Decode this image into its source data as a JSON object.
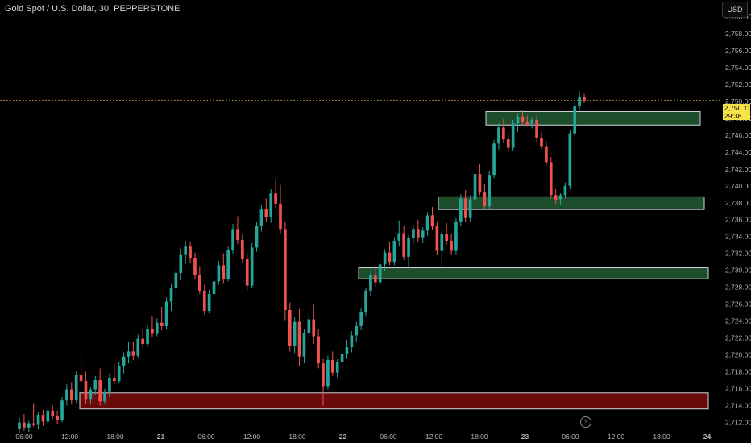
{
  "header": {
    "title": "Gold Spot / U.S. Dollar, 30, PEPPERSTONE",
    "currency_button": "USD"
  },
  "last_price": {
    "value": "2,750.11",
    "countdown": "29:38"
  },
  "colors": {
    "up": "#26a69a",
    "down": "#ef5350",
    "zone_green": "#1e4d2b",
    "zone_red": "#6b0a0a",
    "zone_border": "#d1d4dc",
    "price_line": "#c9a227",
    "tag": "#f5e34a"
  },
  "chart_data": {
    "type": "candlestick",
    "symbol": "XAUUSD",
    "interval": "30",
    "y_axis_ticks": [
      "2,760.00",
      "2,758.00",
      "2,756.00",
      "2,754.00",
      "2,752.00",
      "2,750.00",
      "2,748.00",
      "2,746.00",
      "2,744.00",
      "2,742.00",
      "2,740.00",
      "2,738.00",
      "2,736.00",
      "2,734.00",
      "2,732.00",
      "2,730.00",
      "2,728.00",
      "2,726.00",
      "2,724.00",
      "2,722.00",
      "2,720.00",
      "2,718.00",
      "2,716.00",
      "2,714.00",
      "2,712.00"
    ],
    "ylim": [
      2711.0,
      2762.0
    ],
    "x_axis_ticks": [
      "06:00",
      "12:00",
      "18:00",
      "21",
      "06:00",
      "12:00",
      "18:00",
      "22",
      "06:00",
      "12:00",
      "18:00",
      "23",
      "06:00",
      "12:00",
      "18:00",
      "24"
    ],
    "zones": [
      {
        "kind": "resistance",
        "low": 2747.2,
        "high": 2748.8
      },
      {
        "kind": "support",
        "low": 2737.2,
        "high": 2738.7
      },
      {
        "kind": "support",
        "low": 2729.0,
        "high": 2730.3
      },
      {
        "kind": "demand",
        "low": 2713.6,
        "high": 2715.5
      }
    ],
    "candles": [
      {
        "o": 2711.2,
        "h": 2712.6,
        "l": 2710.8,
        "c": 2712.0
      },
      {
        "o": 2712.0,
        "h": 2713.0,
        "l": 2711.0,
        "c": 2711.4
      },
      {
        "o": 2711.4,
        "h": 2712.2,
        "l": 2710.9,
        "c": 2711.9
      },
      {
        "o": 2711.9,
        "h": 2714.3,
        "l": 2711.5,
        "c": 2711.7
      },
      {
        "o": 2711.7,
        "h": 2713.2,
        "l": 2711.2,
        "c": 2712.9
      },
      {
        "o": 2712.9,
        "h": 2713.5,
        "l": 2711.6,
        "c": 2712.1
      },
      {
        "o": 2712.1,
        "h": 2713.8,
        "l": 2711.9,
        "c": 2713.4
      },
      {
        "o": 2713.4,
        "h": 2714.0,
        "l": 2712.4,
        "c": 2712.8
      },
      {
        "o": 2712.8,
        "h": 2713.4,
        "l": 2711.8,
        "c": 2712.3
      },
      {
        "o": 2712.3,
        "h": 2715.0,
        "l": 2712.0,
        "c": 2714.6
      },
      {
        "o": 2714.6,
        "h": 2716.5,
        "l": 2714.0,
        "c": 2715.9
      },
      {
        "o": 2715.9,
        "h": 2716.8,
        "l": 2714.2,
        "c": 2714.7
      },
      {
        "o": 2714.7,
        "h": 2718.1,
        "l": 2714.3,
        "c": 2717.6
      },
      {
        "o": 2717.6,
        "h": 2720.3,
        "l": 2716.4,
        "c": 2716.9
      },
      {
        "o": 2716.9,
        "h": 2718.0,
        "l": 2714.2,
        "c": 2714.8
      },
      {
        "o": 2714.8,
        "h": 2716.2,
        "l": 2714.1,
        "c": 2715.9
      },
      {
        "o": 2715.9,
        "h": 2717.5,
        "l": 2715.3,
        "c": 2717.0
      },
      {
        "o": 2717.0,
        "h": 2718.4,
        "l": 2714.0,
        "c": 2714.5
      },
      {
        "o": 2714.5,
        "h": 2716.0,
        "l": 2714.2,
        "c": 2715.6
      },
      {
        "o": 2715.6,
        "h": 2717.8,
        "l": 2715.0,
        "c": 2717.3
      },
      {
        "o": 2717.3,
        "h": 2718.9,
        "l": 2716.5,
        "c": 2716.9
      },
      {
        "o": 2716.9,
        "h": 2719.1,
        "l": 2716.6,
        "c": 2718.7
      },
      {
        "o": 2718.7,
        "h": 2720.3,
        "l": 2717.8,
        "c": 2719.8
      },
      {
        "o": 2719.8,
        "h": 2721.5,
        "l": 2719.0,
        "c": 2720.4
      },
      {
        "o": 2720.4,
        "h": 2721.6,
        "l": 2719.4,
        "c": 2719.9
      },
      {
        "o": 2719.9,
        "h": 2722.4,
        "l": 2719.6,
        "c": 2721.9
      },
      {
        "o": 2721.9,
        "h": 2723.0,
        "l": 2720.8,
        "c": 2721.3
      },
      {
        "o": 2721.3,
        "h": 2723.5,
        "l": 2721.0,
        "c": 2723.1
      },
      {
        "o": 2723.1,
        "h": 2724.6,
        "l": 2722.1,
        "c": 2722.5
      },
      {
        "o": 2722.5,
        "h": 2724.3,
        "l": 2722.2,
        "c": 2723.8
      },
      {
        "o": 2723.8,
        "h": 2725.7,
        "l": 2722.9,
        "c": 2723.4
      },
      {
        "o": 2723.4,
        "h": 2726.8,
        "l": 2723.1,
        "c": 2726.3
      },
      {
        "o": 2726.3,
        "h": 2728.4,
        "l": 2725.2,
        "c": 2727.9
      },
      {
        "o": 2727.9,
        "h": 2730.2,
        "l": 2727.0,
        "c": 2729.7
      },
      {
        "o": 2729.7,
        "h": 2732.6,
        "l": 2728.8,
        "c": 2731.9
      },
      {
        "o": 2731.9,
        "h": 2733.5,
        "l": 2730.7,
        "c": 2732.8
      },
      {
        "o": 2732.8,
        "h": 2733.4,
        "l": 2730.9,
        "c": 2731.5
      },
      {
        "o": 2731.5,
        "h": 2732.1,
        "l": 2729.0,
        "c": 2729.4
      },
      {
        "o": 2729.4,
        "h": 2730.5,
        "l": 2727.2,
        "c": 2727.6
      },
      {
        "o": 2727.6,
        "h": 2728.3,
        "l": 2724.8,
        "c": 2725.2
      },
      {
        "o": 2725.2,
        "h": 2727.7,
        "l": 2724.9,
        "c": 2727.2
      },
      {
        "o": 2727.2,
        "h": 2729.1,
        "l": 2726.5,
        "c": 2728.7
      },
      {
        "o": 2728.7,
        "h": 2731.1,
        "l": 2728.3,
        "c": 2730.6
      },
      {
        "o": 2730.6,
        "h": 2732.0,
        "l": 2728.5,
        "c": 2729.0
      },
      {
        "o": 2729.0,
        "h": 2732.8,
        "l": 2728.7,
        "c": 2732.4
      },
      {
        "o": 2732.4,
        "h": 2735.5,
        "l": 2732.0,
        "c": 2734.9
      },
      {
        "o": 2734.9,
        "h": 2736.4,
        "l": 2733.1,
        "c": 2733.6
      },
      {
        "o": 2733.6,
        "h": 2734.3,
        "l": 2730.9,
        "c": 2731.3
      },
      {
        "o": 2731.3,
        "h": 2732.0,
        "l": 2727.6,
        "c": 2728.2
      },
      {
        "o": 2728.2,
        "h": 2733.2,
        "l": 2727.9,
        "c": 2732.7
      },
      {
        "o": 2732.7,
        "h": 2735.8,
        "l": 2732.2,
        "c": 2735.3
      },
      {
        "o": 2735.3,
        "h": 2737.7,
        "l": 2734.6,
        "c": 2737.2
      },
      {
        "o": 2737.2,
        "h": 2738.5,
        "l": 2735.8,
        "c": 2736.3
      },
      {
        "o": 2736.3,
        "h": 2739.6,
        "l": 2735.6,
        "c": 2739.1
      },
      {
        "o": 2739.1,
        "h": 2740.8,
        "l": 2737.4,
        "c": 2737.9
      },
      {
        "o": 2737.9,
        "h": 2740.1,
        "l": 2734.4,
        "c": 2734.9
      },
      {
        "o": 2734.9,
        "h": 2735.7,
        "l": 2724.1,
        "c": 2725.3
      },
      {
        "o": 2725.3,
        "h": 2726.2,
        "l": 2720.4,
        "c": 2721.1
      },
      {
        "o": 2721.1,
        "h": 2724.5,
        "l": 2720.2,
        "c": 2723.9
      },
      {
        "o": 2723.9,
        "h": 2725.4,
        "l": 2718.7,
        "c": 2719.8
      },
      {
        "o": 2719.8,
        "h": 2723.0,
        "l": 2719.0,
        "c": 2722.6
      },
      {
        "o": 2722.6,
        "h": 2724.9,
        "l": 2721.5,
        "c": 2724.2
      },
      {
        "o": 2724.2,
        "h": 2726.0,
        "l": 2721.3,
        "c": 2722.2
      },
      {
        "o": 2722.2,
        "h": 2723.1,
        "l": 2718.4,
        "c": 2719.0
      },
      {
        "o": 2719.0,
        "h": 2719.5,
        "l": 2714.0,
        "c": 2716.3
      },
      {
        "o": 2716.3,
        "h": 2719.9,
        "l": 2715.9,
        "c": 2719.4
      },
      {
        "o": 2719.4,
        "h": 2720.4,
        "l": 2717.5,
        "c": 2717.9
      },
      {
        "o": 2717.9,
        "h": 2719.5,
        "l": 2717.3,
        "c": 2719.1
      },
      {
        "o": 2719.1,
        "h": 2720.7,
        "l": 2718.4,
        "c": 2720.1
      },
      {
        "o": 2720.1,
        "h": 2721.8,
        "l": 2719.5,
        "c": 2720.9
      },
      {
        "o": 2720.9,
        "h": 2722.8,
        "l": 2720.3,
        "c": 2722.3
      },
      {
        "o": 2722.3,
        "h": 2723.9,
        "l": 2721.6,
        "c": 2723.4
      },
      {
        "o": 2723.4,
        "h": 2725.6,
        "l": 2722.9,
        "c": 2725.1
      },
      {
        "o": 2725.1,
        "h": 2728.0,
        "l": 2724.6,
        "c": 2727.6
      },
      {
        "o": 2727.6,
        "h": 2729.9,
        "l": 2727.0,
        "c": 2729.4
      },
      {
        "o": 2729.4,
        "h": 2730.6,
        "l": 2728.1,
        "c": 2728.6
      },
      {
        "o": 2728.6,
        "h": 2731.1,
        "l": 2728.2,
        "c": 2730.7
      },
      {
        "o": 2730.7,
        "h": 2732.5,
        "l": 2729.9,
        "c": 2732.1
      },
      {
        "o": 2732.1,
        "h": 2733.4,
        "l": 2730.6,
        "c": 2731.0
      },
      {
        "o": 2731.0,
        "h": 2733.9,
        "l": 2730.6,
        "c": 2733.5
      },
      {
        "o": 2733.5,
        "h": 2735.9,
        "l": 2732.8,
        "c": 2734.4
      },
      {
        "o": 2734.4,
        "h": 2735.2,
        "l": 2731.2,
        "c": 2731.6
      },
      {
        "o": 2731.6,
        "h": 2734.2,
        "l": 2730.1,
        "c": 2733.8
      },
      {
        "o": 2733.8,
        "h": 2735.4,
        "l": 2733.2,
        "c": 2734.9
      },
      {
        "o": 2734.9,
        "h": 2736.0,
        "l": 2733.4,
        "c": 2733.9
      },
      {
        "o": 2733.9,
        "h": 2735.1,
        "l": 2733.2,
        "c": 2734.7
      },
      {
        "o": 2734.7,
        "h": 2736.9,
        "l": 2734.1,
        "c": 2736.5
      },
      {
        "o": 2736.5,
        "h": 2737.5,
        "l": 2734.8,
        "c": 2735.2
      },
      {
        "o": 2735.2,
        "h": 2735.8,
        "l": 2731.8,
        "c": 2732.3
      },
      {
        "o": 2732.3,
        "h": 2734.7,
        "l": 2730.3,
        "c": 2734.3
      },
      {
        "o": 2734.3,
        "h": 2735.6,
        "l": 2733.0,
        "c": 2733.5
      },
      {
        "o": 2733.5,
        "h": 2734.3,
        "l": 2731.9,
        "c": 2732.3
      },
      {
        "o": 2732.3,
        "h": 2736.2,
        "l": 2731.9,
        "c": 2735.8
      },
      {
        "o": 2735.8,
        "h": 2739.0,
        "l": 2735.3,
        "c": 2738.5
      },
      {
        "o": 2738.5,
        "h": 2739.5,
        "l": 2735.7,
        "c": 2736.2
      },
      {
        "o": 2736.2,
        "h": 2738.9,
        "l": 2735.8,
        "c": 2738.4
      },
      {
        "o": 2738.4,
        "h": 2741.9,
        "l": 2738.0,
        "c": 2741.4
      },
      {
        "o": 2741.4,
        "h": 2742.6,
        "l": 2738.9,
        "c": 2739.3
      },
      {
        "o": 2739.3,
        "h": 2740.2,
        "l": 2737.2,
        "c": 2737.6
      },
      {
        "o": 2737.6,
        "h": 2741.8,
        "l": 2737.2,
        "c": 2741.3
      },
      {
        "o": 2741.3,
        "h": 2745.4,
        "l": 2740.9,
        "c": 2745.0
      },
      {
        "o": 2745.0,
        "h": 2747.4,
        "l": 2744.3,
        "c": 2746.9
      },
      {
        "o": 2746.9,
        "h": 2747.9,
        "l": 2745.1,
        "c": 2745.5
      },
      {
        "o": 2745.5,
        "h": 2746.3,
        "l": 2744.0,
        "c": 2744.5
      },
      {
        "o": 2744.5,
        "h": 2747.8,
        "l": 2744.2,
        "c": 2747.4
      },
      {
        "o": 2747.4,
        "h": 2748.6,
        "l": 2746.4,
        "c": 2748.2
      },
      {
        "o": 2748.2,
        "h": 2749.0,
        "l": 2747.2,
        "c": 2747.6
      },
      {
        "o": 2747.6,
        "h": 2748.3,
        "l": 2747.0,
        "c": 2747.3
      },
      {
        "o": 2747.3,
        "h": 2748.1,
        "l": 2746.8,
        "c": 2747.8
      },
      {
        "o": 2747.8,
        "h": 2748.4,
        "l": 2745.2,
        "c": 2745.7
      },
      {
        "o": 2745.7,
        "h": 2746.4,
        "l": 2744.3,
        "c": 2744.7
      },
      {
        "o": 2744.7,
        "h": 2745.3,
        "l": 2742.3,
        "c": 2742.8
      },
      {
        "o": 2742.8,
        "h": 2743.4,
        "l": 2738.5,
        "c": 2738.9
      },
      {
        "o": 2738.9,
        "h": 2739.6,
        "l": 2737.9,
        "c": 2738.4
      },
      {
        "o": 2738.4,
        "h": 2739.2,
        "l": 2737.8,
        "c": 2738.9
      },
      {
        "o": 2738.9,
        "h": 2740.4,
        "l": 2738.5,
        "c": 2740.0
      },
      {
        "o": 2740.0,
        "h": 2746.6,
        "l": 2739.6,
        "c": 2746.2
      },
      {
        "o": 2746.2,
        "h": 2749.9,
        "l": 2745.9,
        "c": 2749.4
      },
      {
        "o": 2749.4,
        "h": 2751.2,
        "l": 2748.9,
        "c": 2750.5
      },
      {
        "o": 2750.5,
        "h": 2750.9,
        "l": 2749.8,
        "c": 2750.1
      }
    ]
  }
}
